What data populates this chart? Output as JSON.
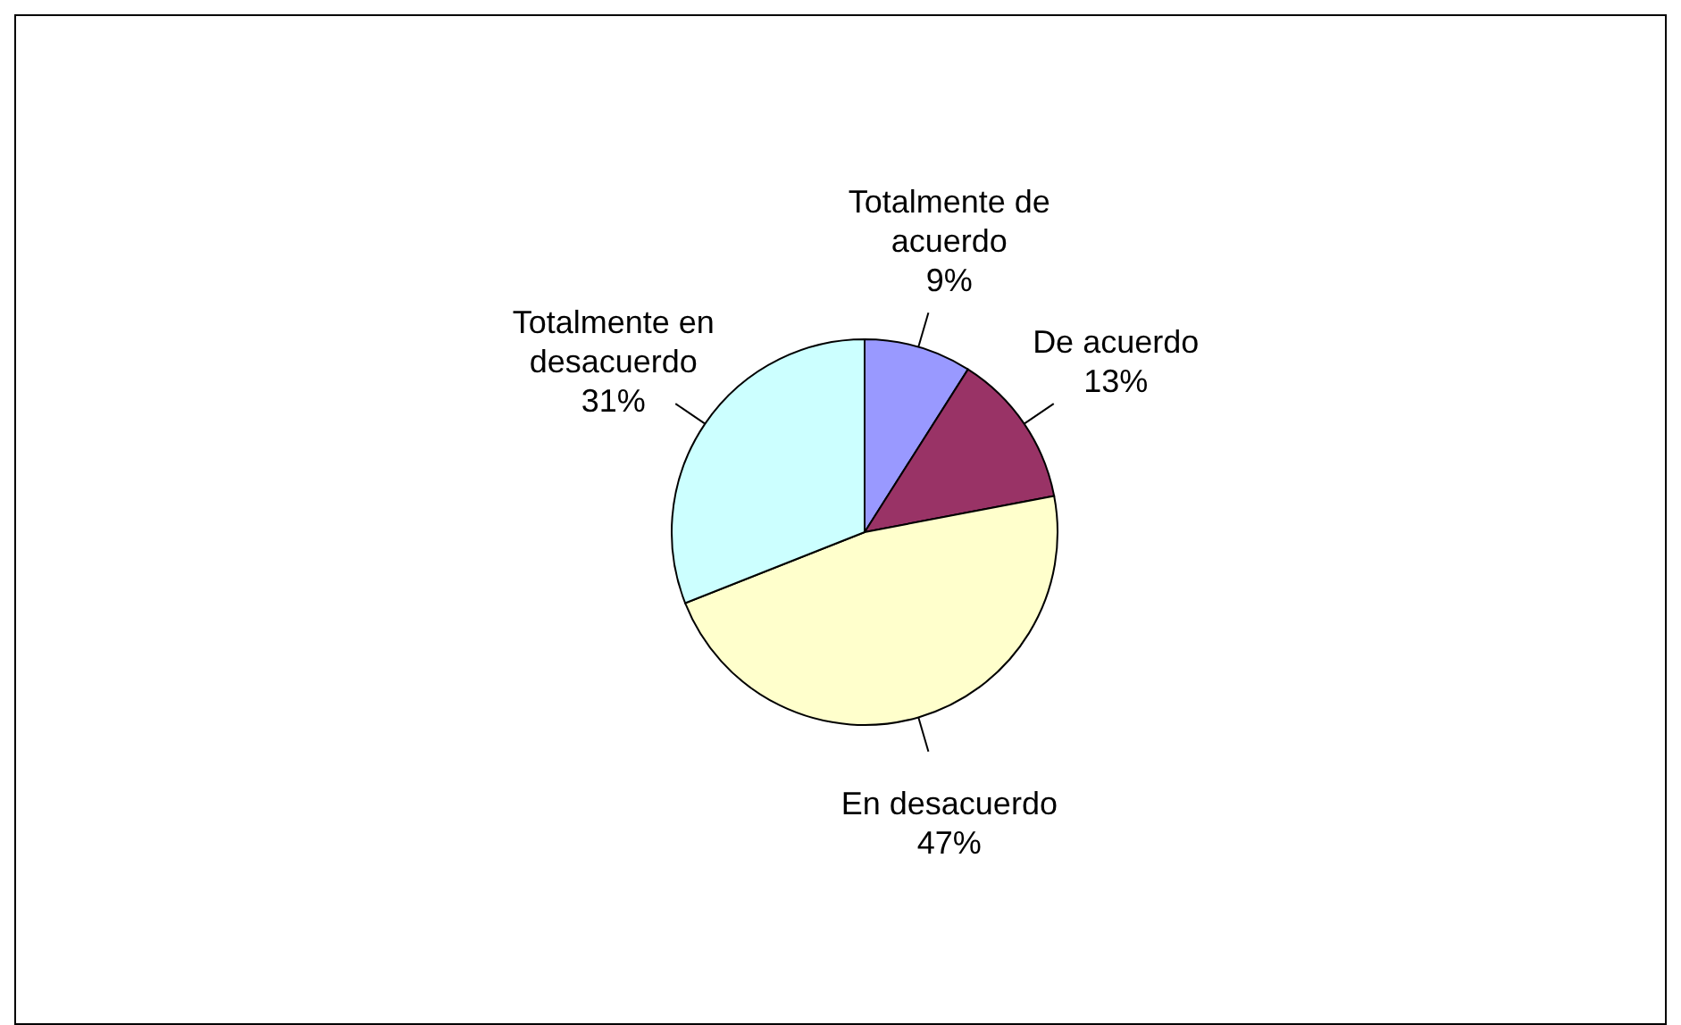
{
  "chart_data": {
    "type": "pie",
    "categories": [
      "Totalmente de acuerdo",
      "De acuerdo",
      "En desacuerdo",
      "Totalmente en desacuerdo"
    ],
    "values": [
      9,
      13,
      47,
      31
    ],
    "colors": [
      "#9999ff",
      "#993366",
      "#ffffcc",
      "#ccffff"
    ],
    "value_labels": [
      "9%",
      "13%",
      "47%",
      "31%"
    ]
  }
}
